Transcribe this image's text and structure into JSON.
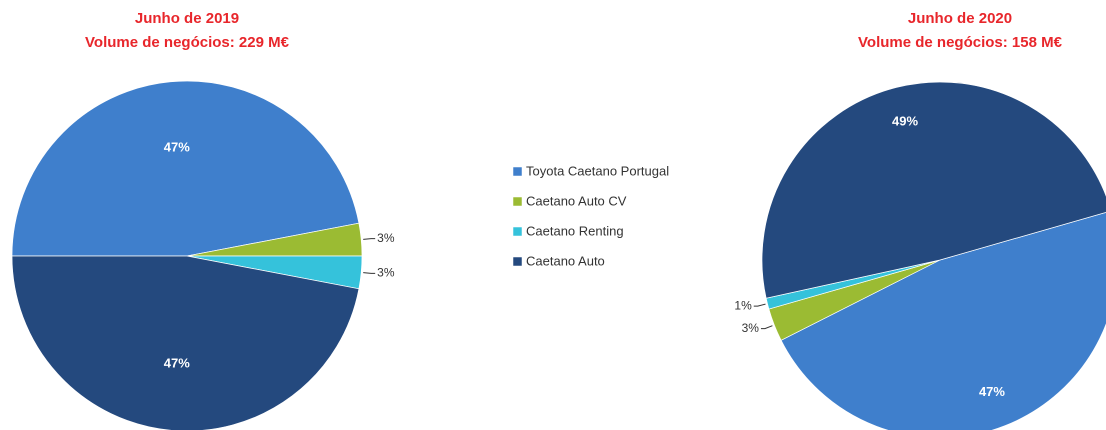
{
  "legend": {
    "labels": [
      "Toyota Caetano Portugal",
      "Caetano Auto CV",
      "Caetano Renting",
      "Caetano Auto"
    ],
    "colors": [
      "#3f7fcc",
      "#9bbb33",
      "#35c2db",
      "#24497e"
    ]
  },
  "chart_data": [
    {
      "type": "pie",
      "title": "Junho de 2019",
      "subtitle": "Volume de negócios: 229 M€",
      "values": [
        47,
        3,
        3,
        47
      ],
      "value_labels": [
        "47%",
        "3%",
        "3%",
        "47%"
      ]
    },
    {
      "type": "pie",
      "title": "Junho de 2020",
      "subtitle": "Volume de negócios: 158 M€",
      "values": [
        47,
        3,
        1,
        49
      ],
      "value_labels": [
        "47%",
        "3%",
        "1%",
        "49%"
      ]
    }
  ]
}
